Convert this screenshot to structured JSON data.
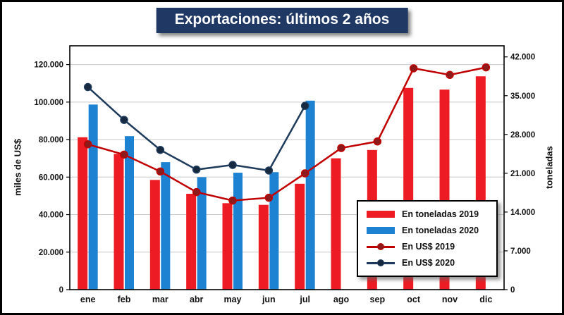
{
  "chart_data": {
    "type": "combo-bar-line",
    "title": "Exportaciones: últimos 2 años",
    "categories": [
      "ene",
      "feb",
      "mar",
      "abr",
      "may",
      "jun",
      "jul",
      "ago",
      "sep",
      "oct",
      "nov",
      "dic"
    ],
    "left_axis": {
      "label": "miles de US$",
      "ticks": [
        "0",
        "20.000",
        "40.000",
        "60.000",
        "80.000",
        "100.000",
        "120.000"
      ],
      "tick_values": [
        0,
        20000,
        40000,
        60000,
        80000,
        100000,
        120000
      ],
      "max": 130000
    },
    "right_axis": {
      "label": "toneladas",
      "ticks": [
        "0",
        "7.000",
        "14.000",
        "21.000",
        "28.000",
        "35.000",
        "42.000"
      ],
      "tick_values": [
        0,
        7000,
        14000,
        21000,
        28000,
        35000,
        42000
      ],
      "max": 44000
    },
    "grid": true,
    "legend_position": "bottom-right-inside",
    "series": [
      {
        "name": "En toneladas 2019",
        "type": "bar",
        "axis": "right",
        "color": "#ed1c24",
        "values": [
          27500,
          24500,
          19800,
          17300,
          15600,
          15300,
          19100,
          23700,
          25200,
          36400,
          36100,
          38500
        ]
      },
      {
        "name": "En toneladas 2020",
        "type": "bar",
        "axis": "right",
        "color": "#1e82d2",
        "values": [
          33400,
          27700,
          23000,
          20300,
          21100,
          21200,
          34100,
          null,
          null,
          null,
          null,
          null
        ]
      },
      {
        "name": "En US$ 2019",
        "type": "line",
        "axis": "left",
        "color": "#c00000",
        "marker": "#8e1b1b",
        "values": [
          77500,
          72000,
          63000,
          52000,
          47500,
          49000,
          62000,
          75500,
          79000,
          118000,
          114500,
          118500
        ]
      },
      {
        "name": "En US$ 2020",
        "type": "line",
        "axis": "left",
        "color": "#1f3b5c",
        "marker": "#16293f",
        "values": [
          108000,
          90500,
          74500,
          64000,
          66500,
          63500,
          98000,
          null,
          null,
          null,
          null,
          null
        ]
      }
    ]
  }
}
